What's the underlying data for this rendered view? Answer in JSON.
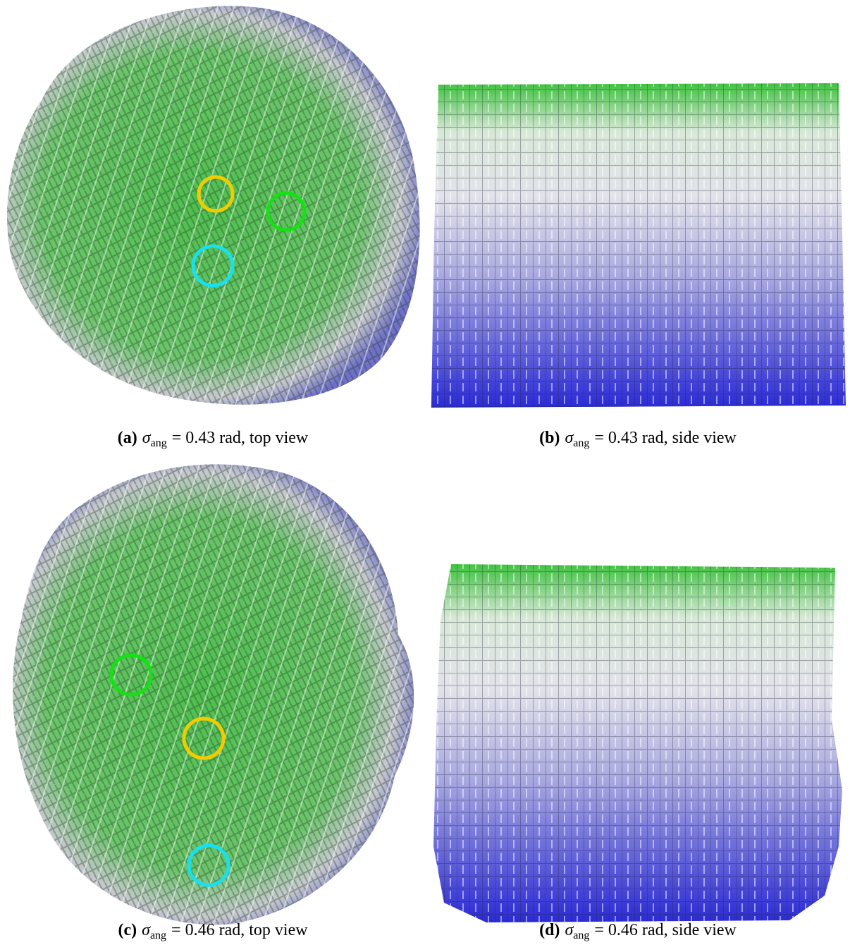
{
  "panels": [
    {
      "label": "(a)",
      "symbol": "σ",
      "subscript": "ang",
      "text": "= 0.43 rad, top view"
    },
    {
      "label": "(b)",
      "symbol": "σ",
      "subscript": "ang",
      "text": "= 0.43 rad, side view"
    },
    {
      "label": "(c)",
      "symbol": "σ",
      "subscript": "ang",
      "text": "= 0.46 rad, top view"
    },
    {
      "label": "(d)",
      "symbol": "σ",
      "subscript": "ang",
      "text": "= 0.46 rad, side view"
    }
  ]
}
